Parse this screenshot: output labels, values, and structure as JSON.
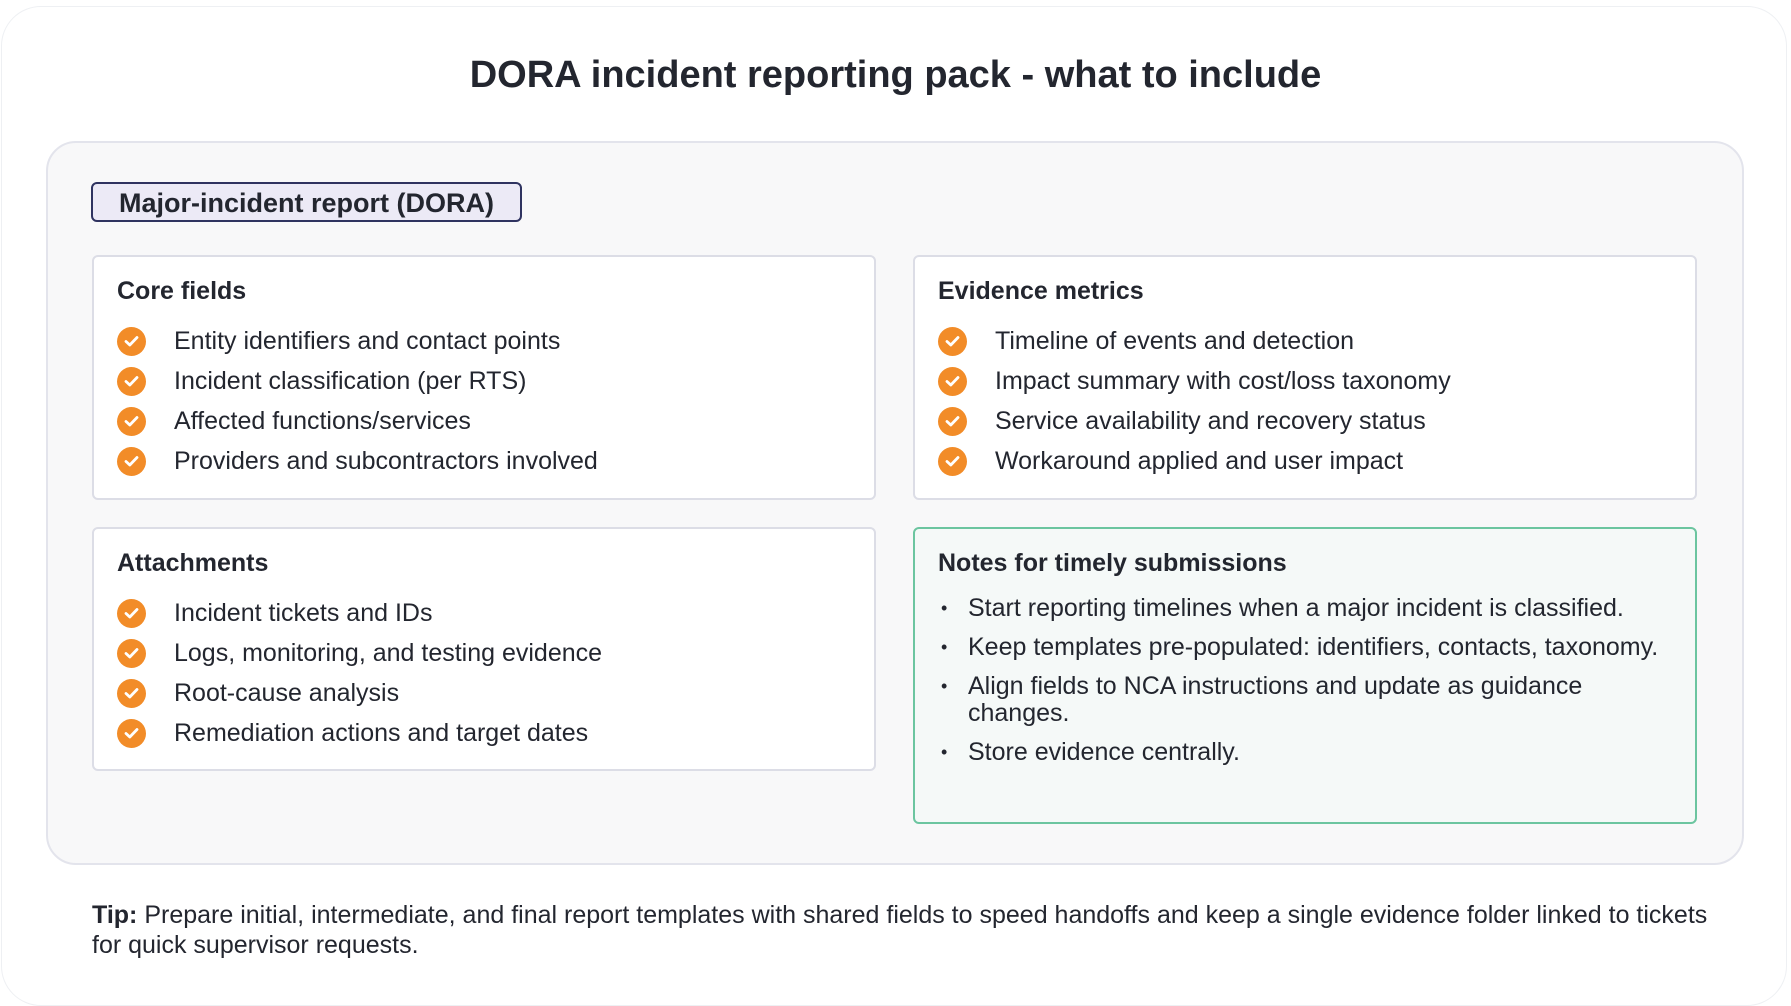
{
  "title": "DORA incident reporting pack - what to include",
  "badge": "Major-incident report (DORA)",
  "colors": {
    "accent_orange": "#F28C28",
    "notes_border": "#6CC5A0",
    "badge_border": "#2F3360"
  },
  "sections": [
    {
      "heading": "Core fields",
      "icon": "check-circle-icon",
      "items": [
        "Entity identifiers and contact points",
        "Incident classification (per RTS)",
        "Affected functions/services",
        "Providers and subcontractors involved"
      ]
    },
    {
      "heading": "Evidence metrics",
      "icon": "check-circle-icon",
      "items": [
        "Timeline of events and detection",
        "Impact summary with cost/loss taxonomy",
        "Service availability and recovery status",
        "Workaround applied and user impact"
      ]
    },
    {
      "heading": "Attachments",
      "icon": "check-circle-icon",
      "items": [
        "Incident tickets and IDs",
        "Logs, monitoring, and testing evidence",
        "Root-cause analysis",
        "Remediation actions and target dates"
      ]
    }
  ],
  "notes": {
    "heading": "Notes for timely submissions",
    "bullet": "•",
    "items": [
      "Start reporting timelines when a major incident is classified.",
      "Keep templates pre-populated: identifiers, contacts, taxonomy.",
      "Align fields to NCA instructions and update as guidance changes.",
      "Store evidence centrally."
    ]
  },
  "tip": {
    "label": "Tip:",
    "text": " Prepare initial, intermediate, and final report templates with shared fields to speed handoffs and keep a single evidence folder linked to tickets for quick supervisor requests."
  }
}
